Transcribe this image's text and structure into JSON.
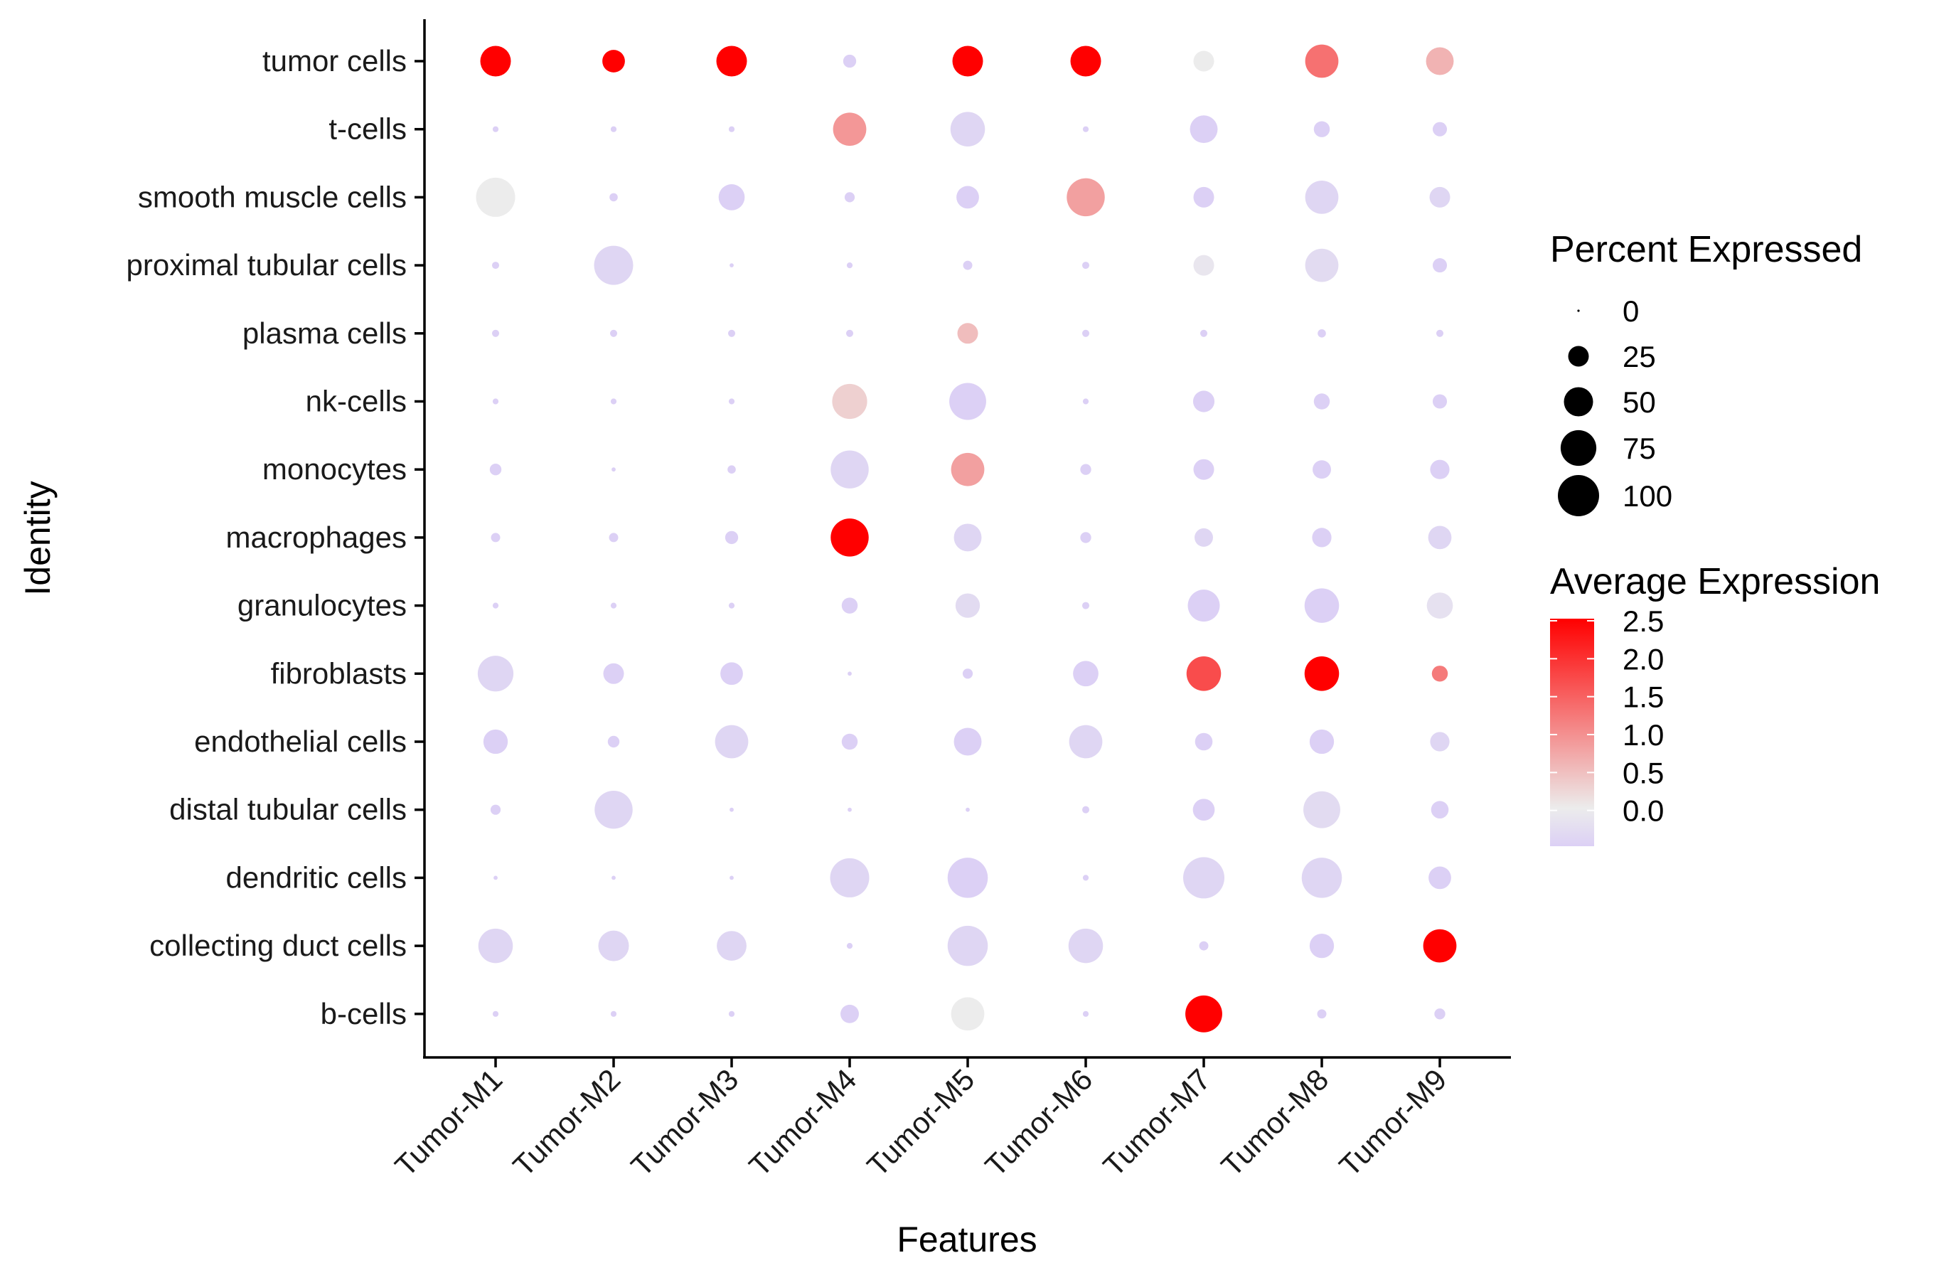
{
  "chart_data": {
    "type": "dotplot",
    "title": "",
    "xlabel": "Features",
    "ylabel": "Identity",
    "features": [
      "Tumor-M1",
      "Tumor-M2",
      "Tumor-M3",
      "Tumor-M4",
      "Tumor-M5",
      "Tumor-M6",
      "Tumor-M7",
      "Tumor-M8",
      "Tumor-M9"
    ],
    "identities": [
      "tumor cells",
      "t-cells",
      "smooth muscle cells",
      "proximal tubular cells",
      "plasma cells",
      "nk-cells",
      "monocytes",
      "macrophages",
      "granulocytes",
      "fibroblasts",
      "endothelial cells",
      "distal tubular cells",
      "dendritic cells",
      "collecting duct cells",
      "b-cells"
    ],
    "highlighted_identity": "tumor cells",
    "highlight_color": "#ff0000",
    "percent_expressed": [
      [
        55,
        30,
        55,
        10,
        55,
        55,
        25,
        65,
        45
      ],
      [
        2,
        2,
        2,
        65,
        70,
        2,
        45,
        15,
        12
      ],
      [
        90,
        4,
        40,
        6,
        30,
        85,
        25,
        65,
        25
      ],
      [
        3,
        90,
        1,
        2,
        5,
        3,
        25,
        65,
        12
      ],
      [
        3,
        3,
        3,
        3,
        25,
        3,
        3,
        4,
        3
      ],
      [
        2,
        2,
        2,
        72,
        80,
        2,
        27,
        15,
        12
      ],
      [
        8,
        1,
        4,
        85,
        65,
        7,
        25,
        20,
        22
      ],
      [
        5,
        5,
        10,
        85,
        45,
        7,
        20,
        22,
        32
      ],
      [
        2,
        2,
        2,
        15,
        35,
        3,
        60,
        70,
        40
      ],
      [
        75,
        25,
        30,
        1,
        6,
        38,
        70,
        70,
        15
      ],
      [
        35,
        8,
        65,
        15,
        45,
        65,
        18,
        35,
        22
      ],
      [
        6,
        85,
        1,
        1,
        1,
        3,
        28,
        80,
        18
      ],
      [
        1,
        1,
        1,
        90,
        95,
        2,
        100,
        95,
        30
      ],
      [
        70,
        55,
        52,
        2,
        95,
        70,
        5,
        35,
        65
      ],
      [
        2,
        2,
        2,
        20,
        65,
        2,
        80,
        5,
        7
      ]
    ],
    "average_expression": [
      [
        2.5,
        2.5,
        2.5,
        -0.5,
        2.5,
        2.5,
        0.0,
        1.3,
        0.6
      ],
      [
        -0.5,
        -0.5,
        -0.5,
        0.9,
        -0.4,
        -0.5,
        -0.5,
        -0.5,
        -0.5
      ],
      [
        0.0,
        -0.5,
        -0.5,
        -0.5,
        -0.5,
        0.8,
        -0.5,
        -0.4,
        -0.4
      ],
      [
        -0.5,
        -0.4,
        -0.5,
        -0.5,
        -0.5,
        -0.5,
        -0.1,
        -0.3,
        -0.5
      ],
      [
        -0.5,
        -0.5,
        -0.5,
        -0.5,
        0.5,
        -0.5,
        -0.5,
        -0.5,
        -0.5
      ],
      [
        -0.5,
        -0.5,
        -0.5,
        0.3,
        -0.5,
        -0.5,
        -0.5,
        -0.5,
        -0.5
      ],
      [
        -0.5,
        -0.5,
        -0.5,
        -0.4,
        0.8,
        -0.5,
        -0.5,
        -0.5,
        -0.5
      ],
      [
        -0.5,
        -0.5,
        -0.5,
        2.5,
        -0.4,
        -0.5,
        -0.4,
        -0.5,
        -0.4
      ],
      [
        -0.5,
        -0.5,
        -0.5,
        -0.5,
        -0.3,
        -0.5,
        -0.5,
        -0.5,
        -0.2
      ],
      [
        -0.4,
        -0.5,
        -0.5,
        -0.5,
        -0.5,
        -0.5,
        1.7,
        2.5,
        1.2
      ],
      [
        -0.5,
        -0.5,
        -0.4,
        -0.5,
        -0.5,
        -0.4,
        -0.5,
        -0.5,
        -0.4
      ],
      [
        -0.5,
        -0.4,
        -0.5,
        -0.5,
        -0.5,
        -0.5,
        -0.5,
        -0.3,
        -0.5
      ],
      [
        -0.5,
        -0.5,
        -0.5,
        -0.4,
        -0.5,
        -0.5,
        -0.4,
        -0.4,
        -0.5
      ],
      [
        -0.4,
        -0.4,
        -0.4,
        -0.5,
        -0.4,
        -0.4,
        -0.5,
        -0.5,
        2.5
      ],
      [
        -0.5,
        -0.5,
        -0.5,
        -0.5,
        0.0,
        -0.5,
        2.5,
        -0.5,
        -0.5
      ]
    ],
    "size_legend": {
      "title": "Percent Expressed",
      "values": [
        0,
        25,
        50,
        75,
        100
      ],
      "labels": [
        "0",
        "25",
        "50",
        "75",
        "100"
      ]
    },
    "color_legend": {
      "title": "Average Expression",
      "range": [
        -0.5,
        2.5
      ],
      "tick_values": [
        2.5,
        2.0,
        1.5,
        1.0,
        0.5,
        0.0
      ],
      "tick_labels": [
        "2.5",
        "2.0",
        "1.5",
        "1.0",
        "0.5",
        "0.0"
      ],
      "colors": {
        "low": "#dcd0f5",
        "mid": "#ececec",
        "high": "#ff0000"
      }
    },
    "grid": false,
    "legend_position": "right"
  }
}
